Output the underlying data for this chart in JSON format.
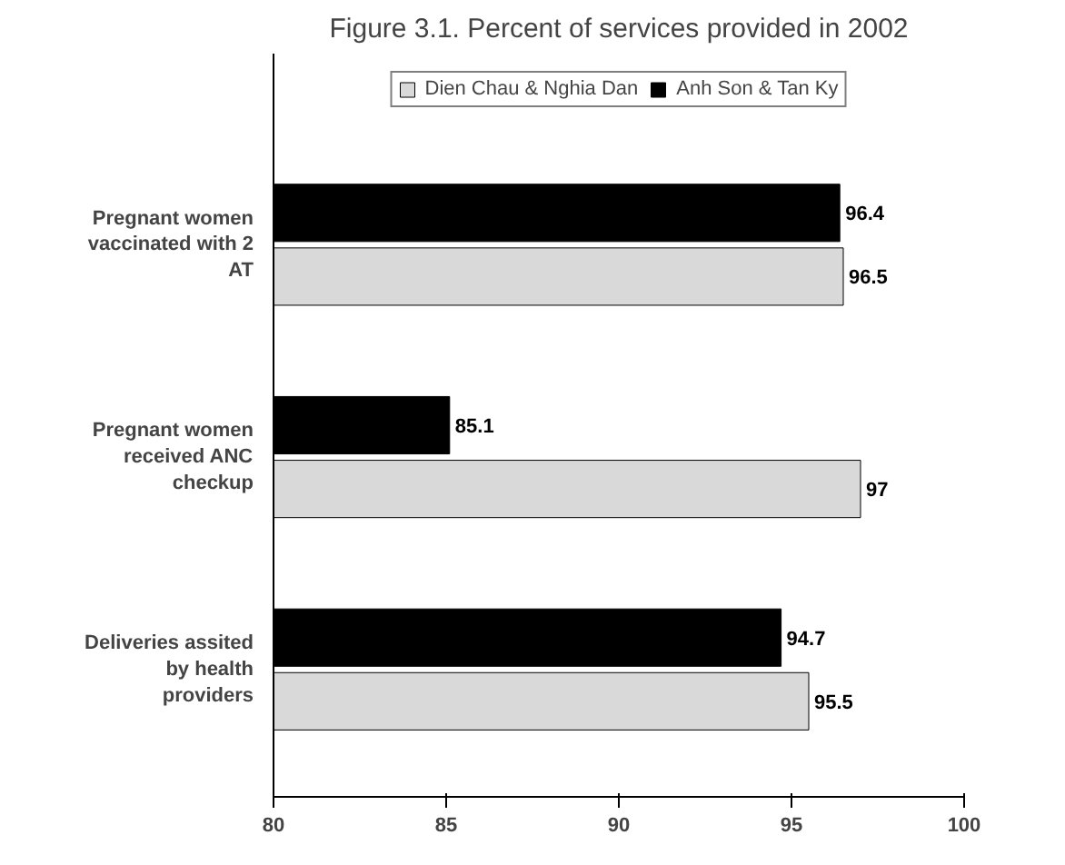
{
  "chart_data": {
    "type": "bar",
    "orientation": "horizontal",
    "title": "Figure 3.1. Percent of services provided in 2002",
    "categories": [
      "Pregnant women vaccinated with 2 AT",
      "Pregnant women received ANC checkup",
      "Deliveries assited by health providers"
    ],
    "series": [
      {
        "name": "Dien Chau & Nghia Dan",
        "color": "#d9d9d9",
        "values": [
          96.5,
          97,
          95.5
        ]
      },
      {
        "name": "Anh Son & Tan Ky",
        "color": "#000000",
        "values": [
          96.4,
          85.1,
          94.7
        ]
      }
    ],
    "xlim": [
      80,
      100
    ],
    "xticks": [
      80,
      85,
      90,
      95,
      100
    ],
    "grid": false,
    "legend": "top",
    "data_labels": true
  }
}
